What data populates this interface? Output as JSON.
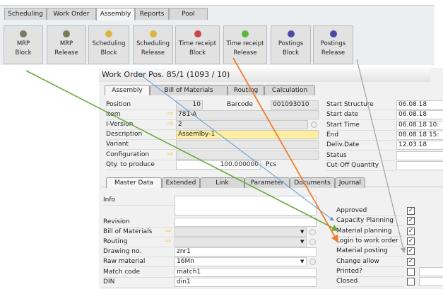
{
  "toolbar": {
    "tabs": [
      "Scheduling",
      "Work Order",
      "Assembly",
      "Reports",
      "Pool"
    ],
    "active_tab": "Assembly",
    "buttons": [
      {
        "line1": "MRP",
        "line2": "Block",
        "icon": "mrp-icon"
      },
      {
        "line1": "MRP",
        "line2": "Release",
        "icon": "mrp-icon"
      },
      {
        "line1": "Scheduling",
        "line2": "Block",
        "icon": "scheduling-icon"
      },
      {
        "line1": "Scheduling",
        "line2": "Release",
        "icon": "scheduling-icon"
      },
      {
        "line1": "Time receipt",
        "line2": "Block",
        "icon": "time-receipt-red-icon"
      },
      {
        "line1": "Time receipt",
        "line2": "Release",
        "icon": "time-receipt-green-icon"
      },
      {
        "line1": "Postings",
        "line2": "Block",
        "icon": "postings-icon"
      },
      {
        "line1": "Postings",
        "line2": "Release",
        "icon": "postings-icon"
      }
    ]
  },
  "window": {
    "title": "Work Order Pos. 85/1 (1093 / 10)",
    "tabs": [
      "Assembly",
      "Bill of Materials",
      "Routing",
      "Calculation"
    ],
    "fields": {
      "position_label": "Position",
      "position": "10",
      "barcode_label": "Barcode",
      "barcode": "001093010",
      "item_label": "Item",
      "item": "781-A",
      "iversion_label": "I-Version",
      "iversion": "2",
      "description_label": "Description",
      "description": "Assemlby-1",
      "variant_label": "Variant",
      "configuration_label": "Configuration",
      "qty_label": "Qty. to produce",
      "qty": "100.000000",
      "unit": "Pcs"
    },
    "right_fields": [
      {
        "label": "Start Structure",
        "value": "06.08.18"
      },
      {
        "label": "Start date",
        "value": "06.08.18"
      },
      {
        "label": "Start Time",
        "value": "06.08.18 10:"
      },
      {
        "label": "End",
        "value": "08.08.18 15:"
      },
      {
        "label": "Deliv.Date",
        "value": "12.03.18"
      },
      {
        "label": "Status",
        "value": ""
      },
      {
        "label": "Cut-Off Quantity",
        "value": ""
      }
    ],
    "subtabs": [
      "Master Data",
      "Extended",
      "Link",
      "Parameter",
      "Documents",
      "Journal"
    ],
    "master": [
      {
        "label": "Info",
        "value": ""
      },
      {
        "label": "Revision",
        "value": ""
      },
      {
        "label": "Bill of Materials",
        "value": ""
      },
      {
        "label": "Routing",
        "value": ""
      },
      {
        "label": "Drawing no.",
        "value": "znr1"
      },
      {
        "label": "Raw material",
        "value": "16Mn"
      },
      {
        "label": "Match code",
        "value": "match1"
      },
      {
        "label": "DIN",
        "value": "din1"
      }
    ],
    "checks": [
      {
        "label": "Approved",
        "checked": true
      },
      {
        "label": "Capacity Planning",
        "checked": true
      },
      {
        "label": "Material planning",
        "checked": true
      },
      {
        "label": "Login to work order",
        "checked": true
      },
      {
        "label": "Material posting",
        "checked": true
      },
      {
        "label": "Change allow",
        "checked": true
      },
      {
        "label": "Printed?",
        "checked": false
      },
      {
        "label": "Closed",
        "checked": false
      }
    ]
  },
  "colors": {
    "green_arrow": "#6aab3c",
    "blue_arrow": "#5b9bd5",
    "orange_arrow": "#ed7d31",
    "gray_arrow": "#a6a6a6",
    "highlight": "#fdeea0"
  }
}
